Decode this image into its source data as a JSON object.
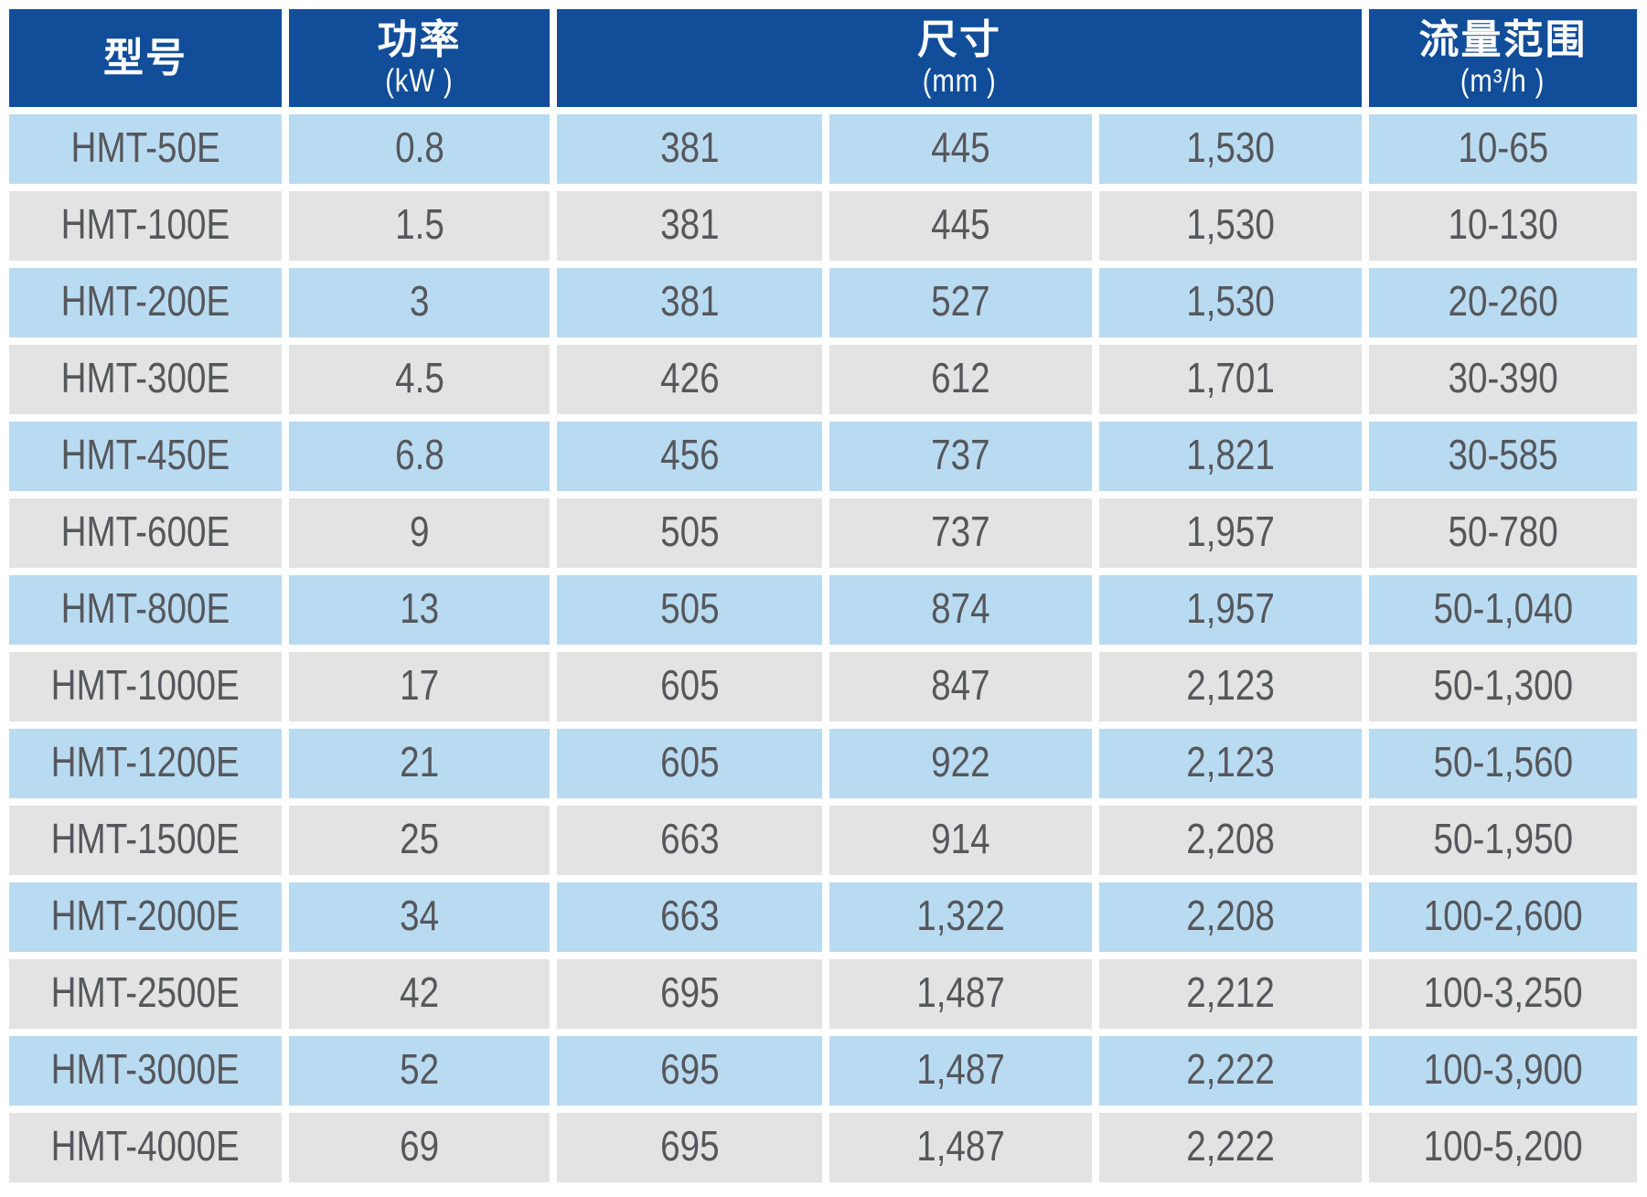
{
  "colors": {
    "header_bg": "#114d99",
    "header_text": "#ffffff",
    "row_blue": "#b9dbf2",
    "row_gray": "#e4e3e3",
    "cell_text": "#56575b"
  },
  "table": {
    "header": {
      "model": {
        "label": "型号"
      },
      "power": {
        "label": "功率",
        "unit": "(kW )"
      },
      "size": {
        "label": "尺寸",
        "unit": "(mm )"
      },
      "flow": {
        "label": "流量范围",
        "unit": "(m³/h )"
      }
    },
    "rows": [
      {
        "model": "HMT-50E",
        "power": "0.8",
        "size": [
          "381",
          "445",
          "1,530"
        ],
        "flow": "10-65"
      },
      {
        "model": "HMT-100E",
        "power": "1.5",
        "size": [
          "381",
          "445",
          "1,530"
        ],
        "flow": "10-130"
      },
      {
        "model": "HMT-200E",
        "power": "3",
        "size": [
          "381",
          "527",
          "1,530"
        ],
        "flow": "20-260"
      },
      {
        "model": "HMT-300E",
        "power": "4.5",
        "size": [
          "426",
          "612",
          "1,701"
        ],
        "flow": "30-390"
      },
      {
        "model": "HMT-450E",
        "power": "6.8",
        "size": [
          "456",
          "737",
          "1,821"
        ],
        "flow": "30-585"
      },
      {
        "model": "HMT-600E",
        "power": "9",
        "size": [
          "505",
          "737",
          "1,957"
        ],
        "flow": "50-780"
      },
      {
        "model": "HMT-800E",
        "power": "13",
        "size": [
          "505",
          "874",
          "1,957"
        ],
        "flow": "50-1,040"
      },
      {
        "model": "HMT-1000E",
        "power": "17",
        "size": [
          "605",
          "847",
          "2,123"
        ],
        "flow": "50-1,300"
      },
      {
        "model": "HMT-1200E",
        "power": "21",
        "size": [
          "605",
          "922",
          "2,123"
        ],
        "flow": "50-1,560"
      },
      {
        "model": "HMT-1500E",
        "power": "25",
        "size": [
          "663",
          "914",
          "2,208"
        ],
        "flow": "50-1,950"
      },
      {
        "model": "HMT-2000E",
        "power": "34",
        "size": [
          "663",
          "1,322",
          "2,208"
        ],
        "flow": "100-2,600"
      },
      {
        "model": "HMT-2500E",
        "power": "42",
        "size": [
          "695",
          "1,487",
          "2,212"
        ],
        "flow": "100-3,250"
      },
      {
        "model": "HMT-3000E",
        "power": "52",
        "size": [
          "695",
          "1,487",
          "2,222"
        ],
        "flow": "100-3,900"
      },
      {
        "model": "HMT-4000E",
        "power": "69",
        "size": [
          "695",
          "1,487",
          "2,222"
        ],
        "flow": "100-5,200"
      }
    ]
  }
}
